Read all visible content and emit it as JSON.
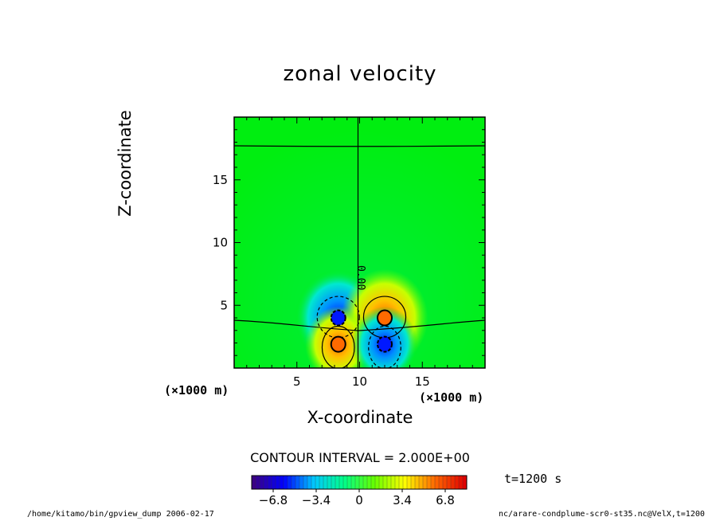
{
  "chart_data": {
    "type": "heatmap",
    "title": "zonal velocity",
    "xlabel": "X-coordinate",
    "ylabel": "Z-coordinate",
    "x_unit": "(×1000 m)",
    "y_unit": "(×1000 m)",
    "xlim": [
      0,
      20
    ],
    "ylim": [
      0,
      20
    ],
    "x_ticks": [
      5,
      10,
      15
    ],
    "y_ticks": [
      5,
      10,
      15
    ],
    "contour_label": "0.00",
    "contour_interval_text": "CONTOUR INTERVAL = 2.000E+00",
    "time_text": "t=1200 s",
    "colorbar": {
      "range": [
        -8.5,
        8.5
      ],
      "tick_values": [
        -6.8,
        -3.4,
        0,
        3.4,
        6.8
      ],
      "tick_labels": [
        "−6.8",
        "−3.4",
        "0",
        "3.4",
        "6.8"
      ],
      "colors": [
        "#3b0086",
        "#0000ff",
        "#00c8ff",
        "#00ff88",
        "#66ff00",
        "#ffff00",
        "#ff6a00",
        "#e00000"
      ]
    },
    "features": [
      {
        "kind": "negative",
        "x": 8.3,
        "z": 4.0,
        "value": -4.8
      },
      {
        "kind": "positive",
        "x": 12.0,
        "z": 4.0,
        "value": 4.6
      },
      {
        "kind": "positive",
        "x": 8.3,
        "z": 1.9,
        "value": 4.2
      },
      {
        "kind": "negative",
        "x": 12.0,
        "z": 1.9,
        "value": -3.6
      }
    ]
  },
  "footer": {
    "left": "/home/kitamo/bin/gpview_dump  2006-02-17",
    "right": "nc/arare-condplume-scr0-st35.nc@VelX,t=1200"
  }
}
